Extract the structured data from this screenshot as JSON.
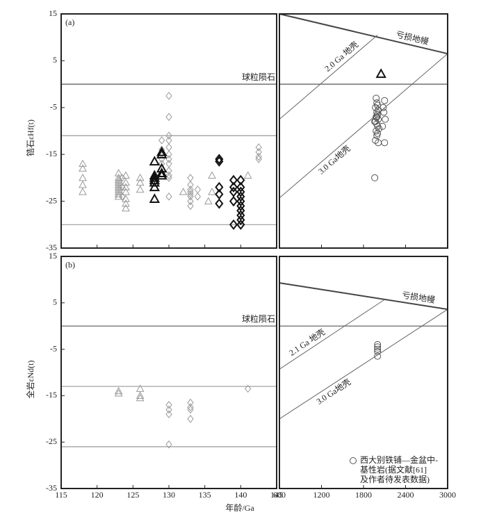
{
  "chart_data": [
    {
      "type": "scatter",
      "panel_label": "(a)",
      "ylabel": "锆石εHf(t)",
      "xlim": [
        115,
        145
      ],
      "ylim": [
        -35,
        15
      ],
      "yticks": [
        -35,
        -25,
        -15,
        -5,
        5,
        15
      ],
      "hlines": [
        {
          "y": 0,
          "color": "#555",
          "label": "球粒陨石"
        },
        {
          "y": -11,
          "color": "#999"
        },
        {
          "y": -30,
          "color": "#999"
        }
      ],
      "series": [
        {
          "marker": "triangle",
          "color": "#999",
          "bold": false,
          "x": [
            118,
            118,
            118,
            118,
            118,
            123,
            123,
            123,
            123,
            123,
            123,
            123,
            123,
            123,
            123,
            124,
            124,
            124,
            124,
            124,
            124,
            124,
            126,
            126,
            126,
            132,
            135.5,
            136,
            136,
            141
          ],
          "y": [
            -17,
            -18,
            -20,
            -21.5,
            -23,
            -19,
            -20,
            -20.5,
            -21,
            -21.5,
            -22,
            -22.5,
            -23,
            -23.5,
            -24,
            -19.5,
            -21,
            -22,
            -23,
            -24.5,
            -25.5,
            -26.5,
            -20,
            -21,
            -22.5,
            -23,
            -25,
            -23,
            -19.5,
            -19.5
          ]
        },
        {
          "marker": "diamond",
          "color": "#999",
          "bold": false,
          "x": [
            123.5,
            123.5,
            123.5,
            129,
            129,
            129,
            129,
            130,
            130,
            130,
            130,
            130,
            130,
            130,
            130,
            130,
            130,
            130,
            130,
            133,
            133,
            133,
            133,
            133,
            133,
            133,
            133,
            134,
            134,
            142.5,
            142.5,
            142.5,
            142.5
          ],
          "y": [
            -20,
            -22,
            -24,
            -12,
            -14,
            -16,
            -17,
            -2.5,
            -7,
            -11,
            -12,
            -13.5,
            -15,
            -16,
            -17,
            -18.5,
            -19.5,
            -20,
            -24,
            -20,
            -21.5,
            -22.5,
            -23,
            -23.5,
            -24,
            -25,
            -26,
            -22.5,
            -24,
            -13.5,
            -14.5,
            -15.5,
            -16
          ]
        },
        {
          "marker": "triangle",
          "color": "#111",
          "bold": true,
          "x": [
            128,
            128,
            128,
            128,
            128,
            128,
            128,
            129,
            129,
            129,
            129,
            129
          ],
          "y": [
            -16.5,
            -19.5,
            -20,
            -20.5,
            -21,
            -22,
            -24.5,
            -14.5,
            -15,
            -18,
            -19,
            -19.5
          ]
        },
        {
          "marker": "diamond",
          "color": "#111",
          "bold": true,
          "x": [
            137,
            137,
            137,
            137,
            137,
            139,
            139,
            139,
            139,
            139,
            140,
            140,
            140,
            140,
            140,
            140,
            140,
            140,
            140,
            140
          ],
          "y": [
            -16,
            -16.5,
            -22,
            -23.5,
            -25.5,
            -20.5,
            -22,
            -23,
            -25,
            -30,
            -20.5,
            -22,
            -23,
            -24,
            -25,
            -26,
            -27,
            -28,
            -29,
            -30
          ]
        }
      ]
    },
    {
      "type": "scatter",
      "xlim": [
        600,
        3000
      ],
      "ylim": [
        -35,
        15
      ],
      "hlines": [
        {
          "y": 0,
          "color": "#555"
        }
      ],
      "lines": [
        {
          "label": "亏损地幔",
          "x": [
            600,
            3000
          ],
          "y": [
            15,
            6.5
          ],
          "color": "#444",
          "width": 2
        },
        {
          "label": "2.0 Ga 地壳",
          "x": [
            600,
            2000
          ],
          "y": [
            -7.5,
            10.5
          ],
          "color": "#666",
          "width": 1
        },
        {
          "label": "3.0 Ga地壳",
          "x": [
            600,
            3000
          ],
          "y": [
            -24.3,
            6.5
          ],
          "color": "#666",
          "width": 1
        }
      ],
      "series": [
        {
          "marker": "triangle",
          "color": "#111",
          "bold": true,
          "x": [
            2050
          ],
          "y": [
            2.2
          ]
        },
        {
          "marker": "circle",
          "color": "#555",
          "bold": false,
          "x": [
            1980,
            1990,
            2000,
            1970,
            2010,
            1990,
            2000,
            1980,
            2010,
            1970,
            1990,
            2000,
            2020,
            1980,
            2000,
            1990,
            1970,
            2010,
            1960,
            1990,
            2100,
            2090,
            2110,
            2100,
            2070,
            2080,
            1960
          ],
          "y": [
            -3,
            -4,
            -4.5,
            -5,
            -5.5,
            -6,
            -6.5,
            -7,
            -7.5,
            -8,
            -8.5,
            -9,
            -9.5,
            -10,
            -10.5,
            -11,
            -12,
            -12.5,
            -20,
            -7,
            -3.5,
            -6,
            -7.5,
            -12.5,
            -9,
            -5,
            -8
          ]
        }
      ]
    },
    {
      "type": "scatter",
      "panel_label": "(b)",
      "ylabel": "全岩εNd(t)",
      "xlabel": "年龄/Ga",
      "xlim": [
        115,
        145
      ],
      "xticks": [
        115,
        120,
        125,
        130,
        135,
        140,
        145
      ],
      "ylim": [
        -35,
        15
      ],
      "yticks": [
        -35,
        -25,
        -15,
        -5,
        5,
        15
      ],
      "hlines": [
        {
          "y": 0,
          "color": "#555",
          "label": "球粒陨石"
        },
        {
          "y": -13,
          "color": "#999"
        },
        {
          "y": -26,
          "color": "#999"
        }
      ],
      "series": [
        {
          "marker": "triangle",
          "color": "#999",
          "bold": false,
          "x": [
            123,
            123,
            126,
            126,
            126
          ],
          "y": [
            -14,
            -14.5,
            -13.5,
            -15,
            -15.5
          ]
        },
        {
          "marker": "diamond",
          "color": "#999",
          "bold": false,
          "x": [
            130,
            130,
            130,
            130,
            133,
            133,
            133,
            133,
            141
          ],
          "y": [
            -17,
            -18,
            -19,
            -25.5,
            -16.5,
            -17.5,
            -18,
            -20,
            -13.5
          ]
        }
      ]
    },
    {
      "type": "scatter",
      "xlim": [
        600,
        3000
      ],
      "xticks": [
        600,
        1200,
        1800,
        2400,
        3000
      ],
      "ylim": [
        -35,
        15
      ],
      "hlines": [
        {
          "y": 0,
          "color": "#555"
        }
      ],
      "lines": [
        {
          "label": "亏损地幔",
          "x": [
            600,
            3000
          ],
          "y": [
            9.3,
            3.6
          ],
          "color": "#444",
          "width": 2
        },
        {
          "label": "2.1 Ga 地壳",
          "x": [
            600,
            2100
          ],
          "y": [
            -9.3,
            5.7
          ],
          "color": "#666",
          "width": 1
        },
        {
          "label": "3.0 Ga地壳",
          "x": [
            600,
            3000
          ],
          "y": [
            -20,
            3.6
          ],
          "color": "#666",
          "width": 1
        }
      ],
      "series": [
        {
          "marker": "circle",
          "color": "#555",
          "bold": false,
          "x": [
            2000,
            2000,
            2000,
            2000,
            2000
          ],
          "y": [
            -4,
            -4.5,
            -5,
            -5.5,
            -6.5
          ]
        }
      ],
      "legend_text": [
        "西大别铁铺—金盆中-",
        "基性岩(据文献[61]",
        "及作者待发表数据)"
      ]
    }
  ]
}
